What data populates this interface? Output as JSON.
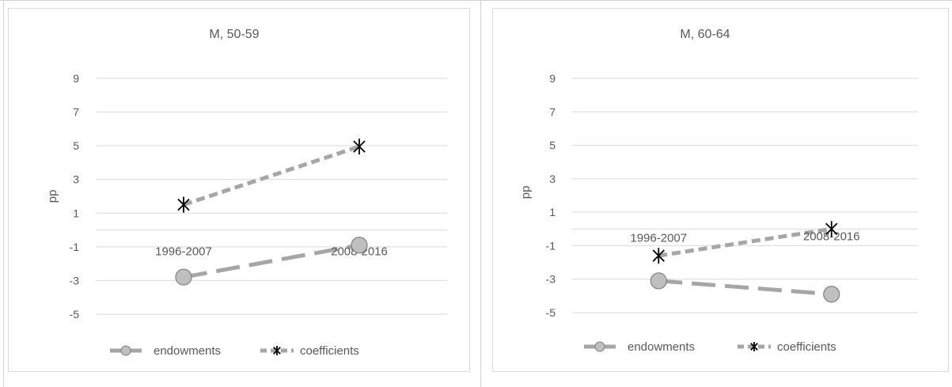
{
  "colors": {
    "endowments_line": "#a6a6a6",
    "endowments_marker_fill": "#bfbfbf",
    "endowments_marker_stroke": "#7f7f7f",
    "coefficients_line": "#a6a6a6",
    "coefficients_marker": "#000000",
    "gridline": "#d9d9d9",
    "axis_text": "#595959"
  },
  "chart_data": [
    {
      "type": "line",
      "title": "M, 50-59",
      "xlabel": "",
      "ylabel": "pp",
      "categories": [
        "1996-2007",
        "2008-2016"
      ],
      "ylim": [
        -5,
        9
      ],
      "yticks": [
        -5,
        -3,
        -1,
        1,
        3,
        5,
        7,
        9
      ],
      "grid": true,
      "legend_position": "bottom",
      "series": [
        {
          "name": "endowments",
          "values": [
            -2.8,
            -0.9
          ],
          "line_style": "long-dash",
          "marker": "circle"
        },
        {
          "name": "coefficients",
          "values": [
            1.5,
            4.95
          ],
          "line_style": "dash",
          "marker": "asterisk"
        }
      ]
    },
    {
      "type": "line",
      "title": "M, 60-64",
      "xlabel": "",
      "ylabel": "pp",
      "categories": [
        "1996-2007",
        "2008-2016"
      ],
      "ylim": [
        -5,
        9
      ],
      "yticks": [
        -5,
        -3,
        -1,
        1,
        3,
        5,
        7,
        9
      ],
      "grid": true,
      "legend_position": "bottom",
      "series": [
        {
          "name": "endowments",
          "values": [
            -3.1,
            -3.9
          ],
          "line_style": "long-dash",
          "marker": "circle"
        },
        {
          "name": "coefficients",
          "values": [
            -1.6,
            0.0
          ],
          "line_style": "dash",
          "marker": "asterisk"
        }
      ]
    }
  ]
}
